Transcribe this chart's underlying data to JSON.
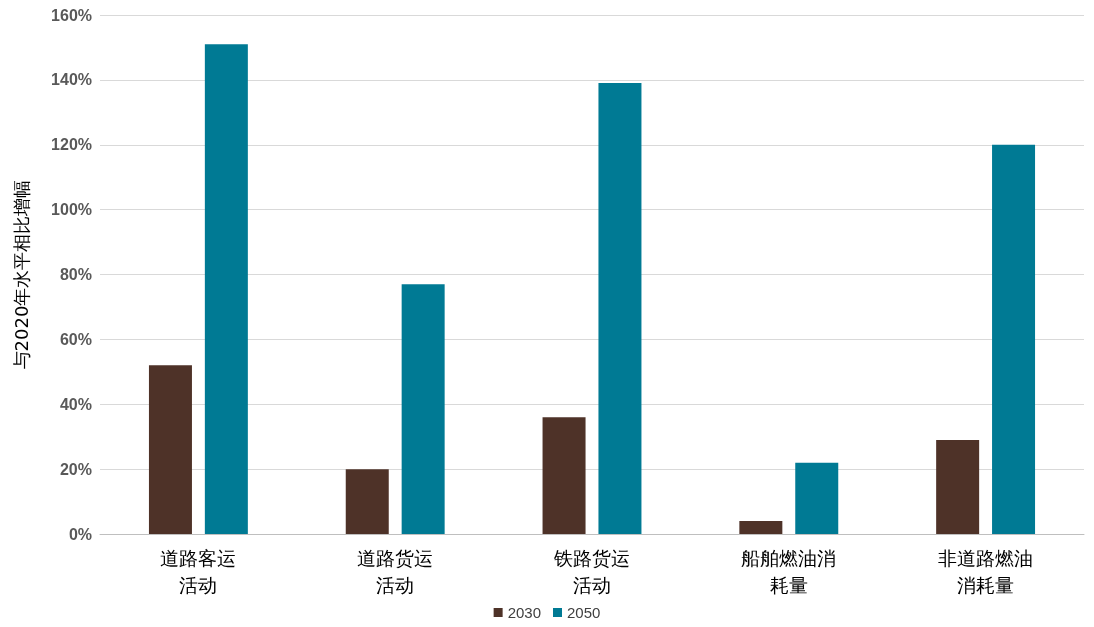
{
  "chart_data": {
    "type": "bar",
    "ylabel": "与2020年水平相比增幅",
    "categories": [
      "道路客运活动",
      "道路货运活动",
      "铁路货运活动",
      "船舶燃油消耗量",
      "非道路燃油消耗量"
    ],
    "series": [
      {
        "name": "2030",
        "color": "#4e3228",
        "values": [
          52,
          20,
          36,
          4,
          29
        ]
      },
      {
        "name": "2050",
        "color": "#007a94",
        "values": [
          151,
          77,
          139,
          22,
          120
        ]
      }
    ],
    "ylim": [
      0,
      160
    ],
    "yticks": [
      {
        "value": 0,
        "label": "0%"
      },
      {
        "value": 20,
        "label": "20%"
      },
      {
        "value": 40,
        "label": "40%"
      },
      {
        "value": 60,
        "label": "60%"
      },
      {
        "value": 80,
        "label": "80%"
      },
      {
        "value": 100,
        "label": "100%"
      },
      {
        "value": 120,
        "label": "120%"
      },
      {
        "value": 140,
        "label": "140%"
      },
      {
        "value": 160,
        "label": "160%"
      }
    ],
    "grid": "y",
    "legend": "bottom"
  }
}
